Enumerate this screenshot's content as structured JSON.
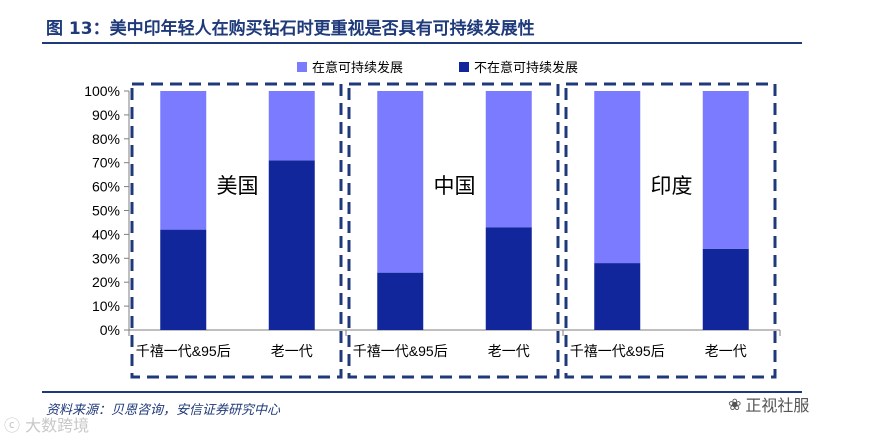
{
  "header": {
    "title": "图 13：美中印年轻人在购买钻石时更重视是否具有可持续发展性"
  },
  "footer": {
    "source": "资料来源：贝恩咨询，安信证券研究中心",
    "watermark_left": "大数跨境",
    "watermark_right": "正视社服"
  },
  "colors": {
    "accent": "#1f3a7a",
    "series_light": "#7b7bff",
    "series_dark": "#10269a"
  },
  "chart_data": {
    "type": "bar",
    "stacked": true,
    "ylim": [
      0,
      100
    ],
    "yticks": [
      "0%",
      "10%",
      "20%",
      "30%",
      "40%",
      "50%",
      "60%",
      "70%",
      "80%",
      "90%",
      "100%"
    ],
    "legend": {
      "position": "top",
      "entries": [
        "在意可持续发展",
        "不在意可持续发展"
      ]
    },
    "groups": [
      {
        "label": "美国",
        "categories": [
          "千禧一代&95后",
          "老一代"
        ],
        "series": [
          {
            "name": "不在意可持续发展",
            "values": [
              42,
              71
            ]
          },
          {
            "name": "在意可持续发展",
            "values": [
              58,
              29
            ]
          }
        ]
      },
      {
        "label": "中国",
        "categories": [
          "千禧一代&95后",
          "老一代"
        ],
        "series": [
          {
            "name": "不在意可持续发展",
            "values": [
              24,
              43
            ]
          },
          {
            "name": "在意可持续发展",
            "values": [
              76,
              57
            ]
          }
        ]
      },
      {
        "label": "印度",
        "categories": [
          "千禧一代&95后",
          "老一代"
        ],
        "series": [
          {
            "name": "不在意可持续发展",
            "values": [
              28,
              34
            ]
          },
          {
            "name": "在意可持续发展",
            "values": [
              72,
              66
            ]
          }
        ]
      }
    ]
  }
}
